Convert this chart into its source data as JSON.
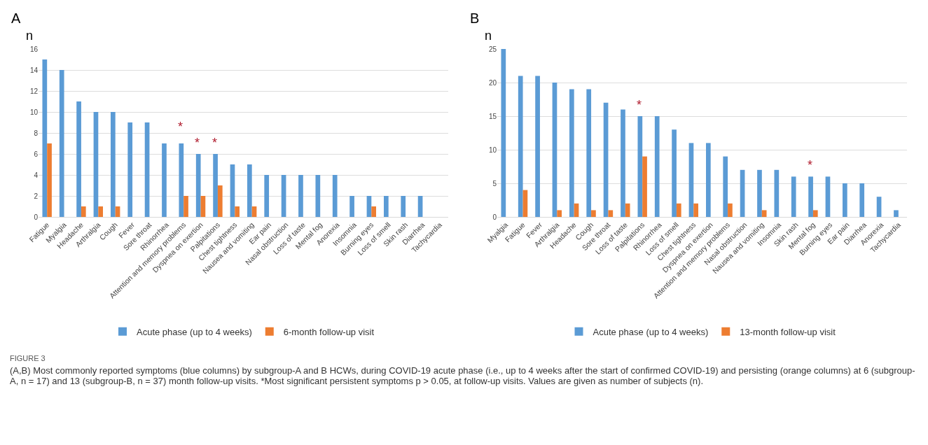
{
  "chart_data": [
    {
      "type": "bar",
      "title": "A",
      "ylabel": "n",
      "categories": [
        "Fatigue",
        "Myalgia",
        "Headache",
        "Arthralgia",
        "Cough",
        "Fever",
        "Sore throat",
        "Rhinorrhea",
        "Attention and memory problems",
        "Dyspnea on exertion",
        "Palpitations",
        "Chest tightness",
        "Nausea and vomiting",
        "Ear pain",
        "Nasal obstruction",
        "Loss of taste",
        "Mental fog",
        "Anorexia",
        "Insomnia",
        "Burning eyes",
        "Loss of smell",
        "Skin rash",
        "Diarrhea",
        "Tachycardia"
      ],
      "series": [
        {
          "name": "Acute phase (up to 4 weeks)",
          "color": "#5b9bd5",
          "values": [
            15,
            14,
            11,
            10,
            10,
            9,
            9,
            7,
            7,
            6,
            6,
            5,
            5,
            4,
            4,
            4,
            4,
            4,
            2,
            2,
            2,
            2,
            2,
            0
          ]
        },
        {
          "name": "6-month follow-up visit",
          "color": "#ed7d31",
          "values": [
            7,
            0,
            1,
            1,
            1,
            0,
            0,
            0,
            2,
            2,
            3,
            1,
            1,
            0,
            0,
            0,
            0,
            0,
            0,
            1,
            0,
            0,
            0,
            0
          ]
        }
      ],
      "ylim": [
        0,
        16
      ],
      "yticks": [
        0,
        2,
        4,
        6,
        8,
        10,
        12,
        14,
        16
      ],
      "grid": "y",
      "legend": "bottom",
      "annotations": [
        {
          "text": "*",
          "x": "Attention and memory problems",
          "y": 7
        },
        {
          "text": "*",
          "x": "Dyspnea on exertion",
          "y": 6
        },
        {
          "text": "*",
          "x": "Palpitations",
          "y": 6
        },
        "FIGURE 3",
        "(A,B) Most commonly reported symptoms (blue columns) by subgroup-A and B HCWs, during COVID-19 acute phase (i.e., up to 4 weeks after the start of confirmed COVID-19) and persisting (orange columns) at 6 (subgroup-A, n = 17) and 13 (subgroup-B, n = 37) month follow-up visits. *Most significant persistent symptoms p > 0.05, at follow-up visits. Values are given as number of subjects (n)."
      ]
    },
    {
      "type": "bar",
      "title": "B",
      "ylabel": "n",
      "categories": [
        "Myalgia",
        "Fatigue",
        "Fever",
        "Arthralgia",
        "Headache",
        "Cough",
        "Sore throat",
        "Loss of taste",
        "Palpitations",
        "Rhinorrhea",
        "Loss of smell",
        "Chest tightness",
        "Dyspnea on exertion",
        "Attention and memory problems",
        "Nasal obstruction",
        "Nausea and vomiting",
        "Insomnia",
        "Skin rash",
        "Mental fog",
        "Burning eyes",
        "Ear pain",
        "Diarrhea",
        "Anorexia",
        "Tachycardia"
      ],
      "series": [
        {
          "name": "Acute phase (up to 4 weeks)",
          "color": "#5b9bd5",
          "values": [
            25,
            21,
            21,
            20,
            19,
            19,
            17,
            16,
            15,
            15,
            13,
            11,
            11,
            9,
            7,
            7,
            7,
            6,
            6,
            6,
            5,
            5,
            3,
            1
          ]
        },
        {
          "name": "13-month follow-up visit",
          "color": "#ed7d31",
          "values": [
            0,
            4,
            0,
            1,
            2,
            1,
            1,
            2,
            9,
            0,
            2,
            2,
            0,
            2,
            0,
            1,
            0,
            0,
            1,
            0,
            0,
            0,
            0,
            0
          ]
        }
      ],
      "ylim": [
        0,
        25
      ],
      "yticks": [
        0,
        5,
        10,
        15,
        20,
        25
      ],
      "grid": "y",
      "legend": "bottom",
      "annotations": [
        {
          "text": "*",
          "x": "Palpitations",
          "y": 15
        },
        {
          "text": "*",
          "x": "Mental fog",
          "y": 6
        }
      ]
    }
  ]
}
